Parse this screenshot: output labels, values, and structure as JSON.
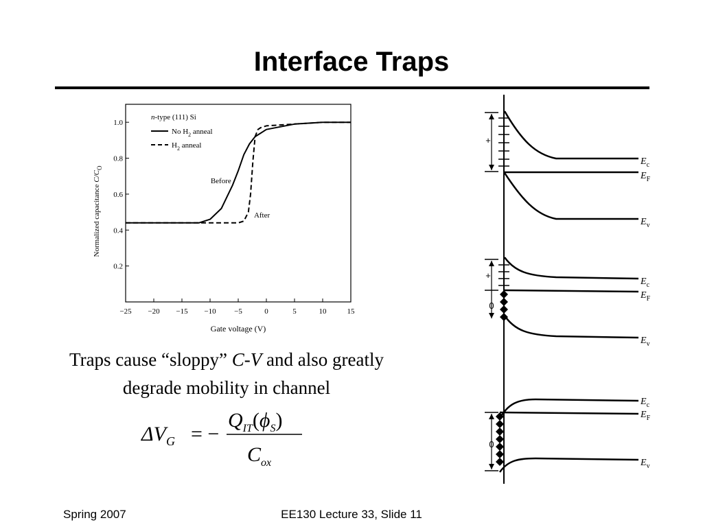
{
  "slide": {
    "title": "Interface Traps",
    "footer_left": "Spring 2007",
    "footer_center": "EE130 Lecture 33, Slide 11"
  },
  "caption": {
    "part1": "Traps cause “sloppy” ",
    "cv_c": "C",
    "cv_dash": "-",
    "cv_v": "V",
    "part2": " and also greatly degrade mobility in channel"
  },
  "formula": {
    "delta_v": "ΔV",
    "v_sub": "G",
    "equals_minus": "= −",
    "numerator_q": "Q",
    "numerator_sub": "IT",
    "numerator_paren_open": "(",
    "numerator_phi": "ϕ",
    "numerator_phi_sub": "S",
    "numerator_paren_close": ")",
    "denominator_c": "C",
    "denominator_sub": "ox"
  },
  "chart_data": {
    "type": "line",
    "annotation_header_italic": "n",
    "annotation_header": "-type (111) Si",
    "xlabel": "Gate voltage   (V)",
    "ylabel_prefix": "Normalized capacitance ",
    "ylabel_var": "C/C",
    "ylabel_sub": "O",
    "xlim": [
      -25,
      15
    ],
    "ylim": [
      0,
      1.1
    ],
    "x_ticks": [
      -25,
      -20,
      -15,
      -10,
      -5,
      0,
      5,
      10,
      15
    ],
    "x_tick_labels": [
      "−25",
      "−20",
      "−15",
      "−10",
      "−5",
      "0",
      "5",
      "10",
      "15"
    ],
    "y_ticks": [
      0.2,
      0.4,
      0.6,
      0.8,
      1.0
    ],
    "y_tick_labels": [
      "0.2",
      "0.4",
      "0.6",
      "0.8",
      "1.0"
    ],
    "legend": [
      {
        "label_prefix": "No H",
        "label_sub": "2",
        "label_suffix": " anneal",
        "style": "solid"
      },
      {
        "label_prefix": "H",
        "label_sub": "2",
        "label_suffix": " anneal",
        "style": "dashed"
      }
    ],
    "annotations": [
      {
        "text": "Before",
        "x": -9.9,
        "y": 0.66
      },
      {
        "text": "After",
        "x": -2.2,
        "y": 0.47
      }
    ],
    "series": [
      {
        "style": "solid",
        "x": [
          -25,
          -12,
          -10,
          -8,
          -6,
          -5,
          -4,
          -3,
          -2,
          0,
          5,
          10,
          15
        ],
        "y": [
          0.44,
          0.44,
          0.46,
          0.52,
          0.65,
          0.73,
          0.82,
          0.88,
          0.92,
          0.96,
          0.99,
          1.0,
          1.0
        ]
      },
      {
        "style": "dashed",
        "x": [
          -25,
          -5,
          -4,
          -3.2,
          -2.8,
          -2.4,
          -2,
          -1.5,
          -1,
          0,
          5,
          10,
          15
        ],
        "y": [
          0.44,
          0.44,
          0.45,
          0.5,
          0.6,
          0.78,
          0.92,
          0.96,
          0.97,
          0.98,
          0.99,
          1.0,
          1.0
        ]
      }
    ]
  },
  "band_diagrams": [
    {
      "ec_label": "E",
      "ec_sub": "c",
      "ef_label": "E",
      "ef_sub": "F",
      "ev_label": "E",
      "ev_sub": "v",
      "charge_label": "+"
    },
    {
      "ec_label": "E",
      "ec_sub": "c",
      "ef_label": "E",
      "ef_sub": "F",
      "ev_label": "E",
      "ev_sub": "v",
      "charge_label": "+",
      "zero_label": "0"
    },
    {
      "ec_label": "E",
      "ec_sub": "c",
      "ef_label": "E",
      "ef_sub": "F",
      "ev_label": "E",
      "ev_sub": "v",
      "zero_label": "0"
    }
  ]
}
